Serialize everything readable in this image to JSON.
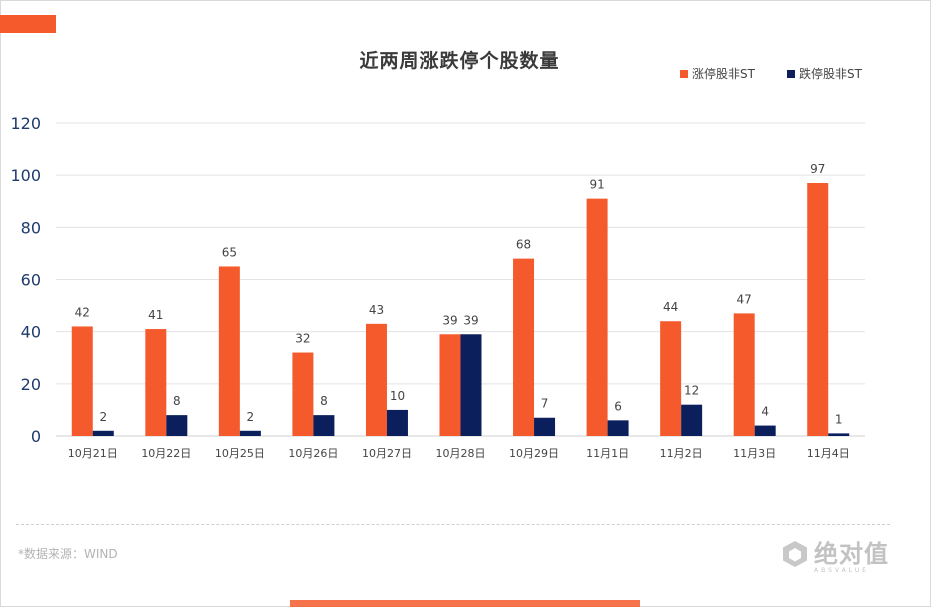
{
  "title": "近两周涨跌停个股数量",
  "source": "*数据来源：WIND",
  "logo": {
    "name": "绝对值",
    "sub": "ABSVALUE"
  },
  "colors": {
    "accent": "#f55a2c",
    "up": "#f55a2c",
    "down": "#0b1f5c"
  },
  "chart_data": {
    "type": "bar",
    "title": "近两周涨跌停个股数量",
    "categories": [
      "10月21日",
      "10月22日",
      "10月25日",
      "10月26日",
      "10月27日",
      "10月28日",
      "10月29日",
      "11月1日",
      "11月2日",
      "11月3日",
      "11月4日"
    ],
    "series": [
      {
        "name": "涨停股非ST",
        "color": "#f55a2c",
        "values": [
          42,
          41,
          65,
          32,
          43,
          39,
          68,
          91,
          44,
          47,
          97
        ]
      },
      {
        "name": "跌停股非ST",
        "color": "#0b1f5c",
        "values": [
          2,
          8,
          2,
          8,
          10,
          39,
          7,
          6,
          12,
          4,
          1
        ]
      }
    ],
    "ylim": [
      0,
      120
    ],
    "yticks": [
      0,
      20,
      40,
      60,
      80,
      100,
      120
    ],
    "grid": true,
    "legend": "top-right",
    "xlabel": "",
    "ylabel": ""
  }
}
